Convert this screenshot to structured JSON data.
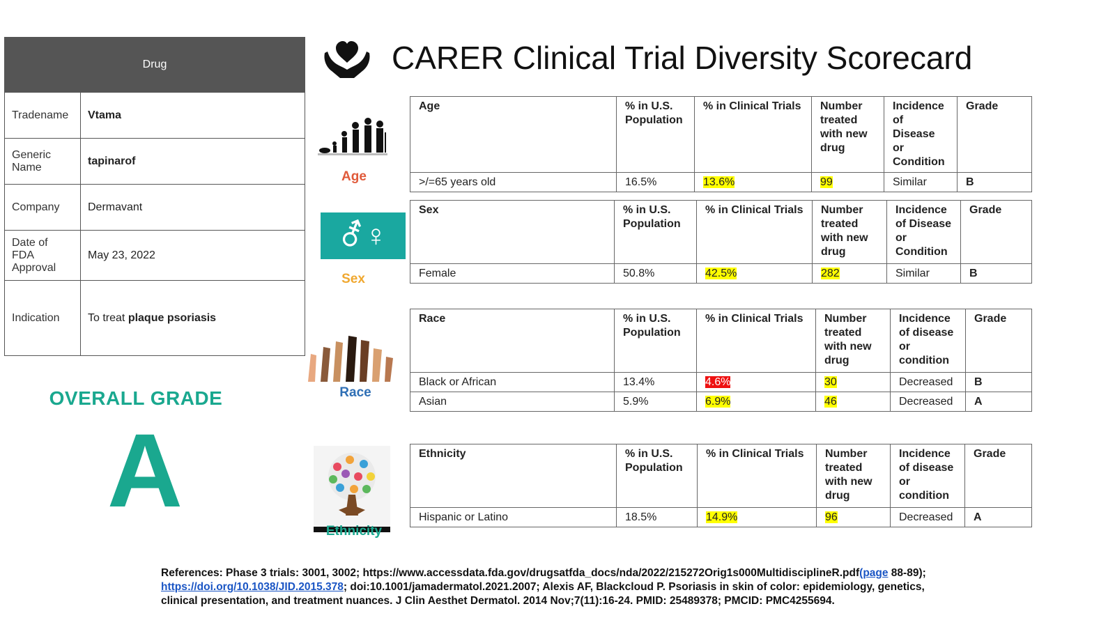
{
  "header": {
    "title": "CARER Clinical Trial Diversity Scorecard"
  },
  "drug": {
    "header": "Drug",
    "rows": [
      {
        "label": "Tradename",
        "value": "Vtama"
      },
      {
        "label": "Generic Name",
        "value": "tapinarof"
      },
      {
        "label": "Company",
        "value": "Dermavant"
      },
      {
        "label": "Date of FDA Approval",
        "value": "May 23, 2022"
      },
      {
        "label": "Indication",
        "prefix": "To treat ",
        "value": "plaque psoriasis"
      }
    ]
  },
  "overall": {
    "label": "OVERALL GRADE",
    "grade": "A"
  },
  "categories": {
    "age": {
      "label": "Age",
      "color": "#e05a3a"
    },
    "sex": {
      "label": "Sex",
      "color": "#f0a830",
      "symbol": "⚦♀"
    },
    "race": {
      "label": "Race",
      "color": "#2f6fb5"
    },
    "ethnicity": {
      "label": "Ethnicity",
      "color": "#1aa88f"
    }
  },
  "tables": {
    "age": {
      "headers": [
        "Age",
        "% in U.S. Population",
        "% in Clinical Trials",
        "Number treated with new drug",
        "Incidence of Disease or Condition",
        "Grade"
      ],
      "rows": [
        [
          "&gt;/=65 years old",
          "16.5%",
          "13.6%",
          "99",
          "Similar",
          "B"
        ]
      ]
    },
    "sex": {
      "headers": [
        "Sex",
        "% in U.S. Population",
        "% in Clinical Trials",
        "Number treated with new drug",
        "Incidence of Disease or Condition",
        "Grade"
      ],
      "rows": [
        [
          "Female",
          "50.8%",
          "42.5%",
          "282",
          "Similar",
          "B"
        ]
      ]
    },
    "race": {
      "headers": [
        "Race",
        "% in U.S. Population",
        "% in Clinical Trials",
        "Number treated with new drug",
        "Incidence of disease or condition",
        "Grade"
      ],
      "rows": [
        [
          "Black or African",
          "13.4%",
          "4.6%",
          "30",
          "Decreased",
          "B"
        ],
        [
          "Asian",
          "5.9%",
          "6.9%",
          "46",
          "Decreased",
          "A"
        ]
      ]
    },
    "ethnicity": {
      "headers": [
        "Ethnicity",
        "% in U.S. Population",
        "% in Clinical Trials",
        "Number treated with new drug",
        "Incidence of disease or condition",
        "Grade"
      ],
      "rows": [
        [
          "Hispanic or Latino",
          "18.5%",
          "14.9%",
          "96",
          "Decreased",
          "A"
        ]
      ]
    }
  },
  "references": {
    "part1": "References: Phase 3 trials: 3001, 3002; https://www.accessdata.fda.gov/drugsatfda_docs/nda/2022/215272Orig1s000MultidisciplineR.pdf",
    "link1": "(page",
    "part2": " 88-89); ",
    "link2": "https://doi.org/10.1038/JID.2015.378",
    "part3": "; doi:10.1001/jamadermatol.2021.2007; Alexis AF, Blackcloud P. Psoriasis in skin of color: epidemiology, genetics, clinical presentation, and treatment nuances. J Clin Aesthet Dermatol. 2014 Nov;7(11):16-24. PMID: 25489378; PMCID: PMC4255694."
  }
}
